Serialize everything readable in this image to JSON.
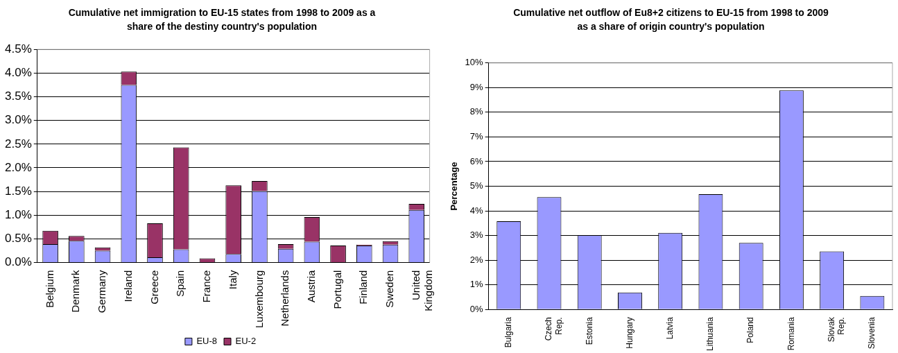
{
  "chart_data": [
    {
      "type": "bar",
      "title": "Cumulative net immigration to EU-15 states from 1998 to 2009 as a share of the destiny country's population",
      "categories": [
        "Belgium",
        "Denmark",
        "Germany",
        "Ireland",
        "Greece",
        "Spain",
        "France",
        "Italy",
        "Luxembourg",
        "Netherlands",
        "Austria",
        "Portugal",
        "Finland",
        "Sweden",
        "United Kingdom"
      ],
      "series": [
        {
          "name": "EU-8",
          "color": "#9999ff",
          "values": [
            0.39,
            0.46,
            0.25,
            3.75,
            0.11,
            0.28,
            null,
            0.18,
            1.51,
            0.29,
            0.44,
            null,
            0.36,
            0.38,
            1.11
          ]
        },
        {
          "name": "EU-2",
          "color": "#993366",
          "values": [
            0.28,
            0.1,
            0.07,
            0.28,
            0.72,
            2.15,
            0.09,
            1.45,
            0.21,
            0.1,
            0.52,
            0.36,
            0.02,
            0.07,
            0.13
          ]
        }
      ],
      "stacked": true,
      "ylim": [
        0,
        4.5
      ],
      "yticks": [
        {
          "value": 0,
          "label": "0.0%"
        },
        {
          "value": 0.5,
          "label": "0.5%"
        },
        {
          "value": 1,
          "label": "1.0%"
        },
        {
          "value": 1.5,
          "label": "1.5%"
        },
        {
          "value": 2,
          "label": "2.0%"
        },
        {
          "value": 2.5,
          "label": "2.5%"
        },
        {
          "value": 3,
          "label": "3.0%"
        },
        {
          "value": 3.5,
          "label": "3.5%"
        },
        {
          "value": 4,
          "label": "4.0%"
        },
        {
          "value": 4.5,
          "label": "4.5%"
        }
      ],
      "grid": "y",
      "legend": "bottom"
    },
    {
      "type": "bar",
      "title": "Cumulative net outflow of Eu8+2 citizens to EU-15 from 1998 to 2009 as a share of origin country's population",
      "ylabel": "Percentage",
      "categories": [
        "Bulgaria",
        "Czech Rep.",
        "Estonia",
        "Hungary",
        "Latvia",
        "Lithuania",
        "Poland",
        "Romania",
        "Slovak Rep.",
        "Slovenia"
      ],
      "values": [
        3.58,
        4.56,
        3.02,
        0.69,
        3.11,
        4.68,
        2.7,
        8.89,
        2.36,
        0.55
      ],
      "color": "#9999ff",
      "ylim": [
        0,
        10
      ],
      "yticks": [
        {
          "value": 0,
          "label": "0%"
        },
        {
          "value": 1,
          "label": "1%"
        },
        {
          "value": 2,
          "label": "2%"
        },
        {
          "value": 3,
          "label": "3%"
        },
        {
          "value": 4,
          "label": "4%"
        },
        {
          "value": 5,
          "label": "5%"
        },
        {
          "value": 6,
          "label": "6%"
        },
        {
          "value": 7,
          "label": "7%"
        },
        {
          "value": 8,
          "label": "8%"
        },
        {
          "value": 9,
          "label": "9%"
        },
        {
          "value": 10,
          "label": "10%"
        }
      ],
      "grid": "y",
      "legend": false
    }
  ]
}
